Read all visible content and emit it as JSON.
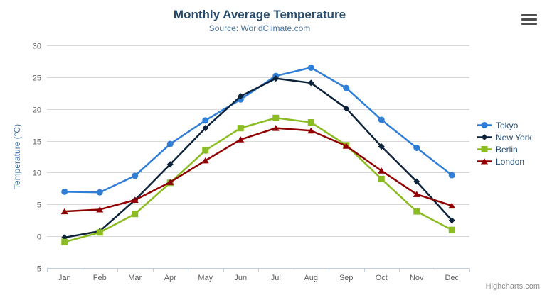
{
  "chart_data": {
    "type": "line",
    "title": "Monthly Average Temperature",
    "subtitle": "Source: WorldClimate.com",
    "xlabel": "",
    "ylabel": "Temperature (°C)",
    "ylim": [
      -5,
      30
    ],
    "yticks": [
      -5,
      0,
      5,
      10,
      15,
      20,
      25,
      30
    ],
    "categories": [
      "Jan",
      "Feb",
      "Mar",
      "Apr",
      "May",
      "Jun",
      "Jul",
      "Aug",
      "Sep",
      "Oct",
      "Nov",
      "Dec"
    ],
    "grid": true,
    "legend_position": "right",
    "series": [
      {
        "name": "Tokyo",
        "color": "#2f7ed8",
        "marker": "circle",
        "values": [
          7.0,
          6.9,
          9.5,
          14.5,
          18.2,
          21.5,
          25.2,
          26.5,
          23.3,
          18.3,
          13.9,
          9.6
        ]
      },
      {
        "name": "New York",
        "color": "#0d233a",
        "marker": "diamond",
        "values": [
          -0.2,
          0.8,
          5.7,
          11.3,
          17.0,
          22.0,
          24.8,
          24.1,
          20.1,
          14.1,
          8.6,
          2.5
        ]
      },
      {
        "name": "Berlin",
        "color": "#8bbc21",
        "marker": "square",
        "values": [
          -0.9,
          0.6,
          3.5,
          8.4,
          13.5,
          17.0,
          18.6,
          17.9,
          14.3,
          9.0,
          3.9,
          1.0
        ]
      },
      {
        "name": "London",
        "color": "#910000",
        "marker": "triangle",
        "values": [
          3.9,
          4.2,
          5.7,
          8.5,
          11.9,
          15.2,
          17.0,
          16.6,
          14.2,
          10.3,
          6.6,
          4.8
        ]
      }
    ]
  },
  "credits": {
    "label": "Highcharts.com"
  },
  "ui_colors": {
    "title": "#274b6d",
    "subtitle": "#4d759e",
    "y_axis_title": "#4572a7",
    "axis_label": "#606060",
    "axis_line": "#c0d0e0",
    "gridline": "#d8d8d8",
    "legend_text": "#274b6d",
    "credits_text": "#8f8f8f",
    "menu_icon": "#4d4d4d"
  }
}
